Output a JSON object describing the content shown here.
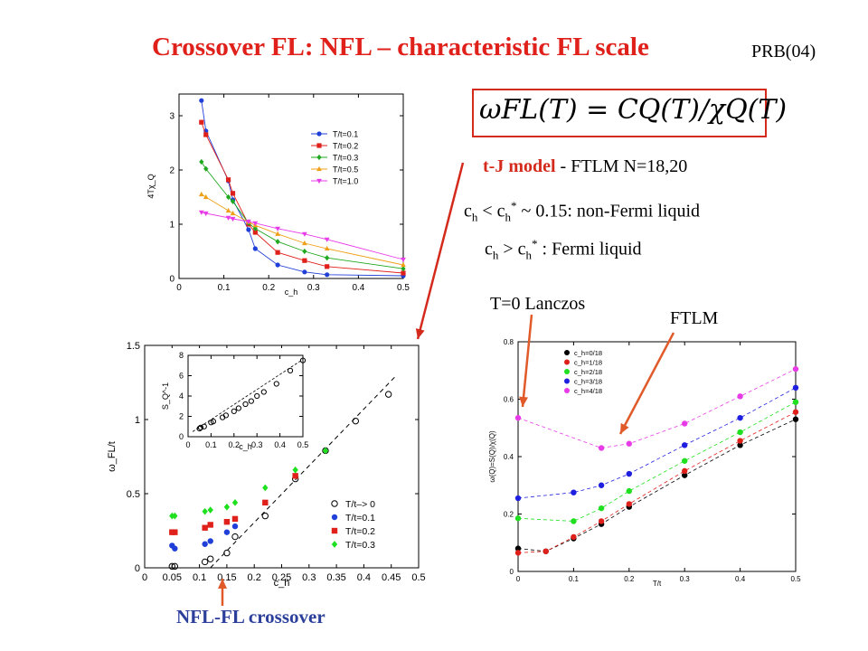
{
  "title": "Crossover FL: NFL –  characteristic FL scale",
  "reference": "PRB(04)",
  "formula": "ωFL(T) = CQ(T)/χQ(T)",
  "model": {
    "name": "t-J model",
    "rest": " - FTLM  N=18,20"
  },
  "condition_nfl": {
    "c": "c",
    "h1": "h",
    "lt": " < c",
    "h2": "h",
    "star": "*",
    "rest": " ~ 0.15:    non-Fermi liquid"
  },
  "condition_fl": {
    "c": "c",
    "h1": "h",
    "gt": " > c",
    "h2": "h",
    "star": "*",
    "rest": " :      Fermi liquid"
  },
  "labels": {
    "lanczos": "T=0 Lanczos",
    "ftlm": "FTLM",
    "crossover": "NFL-FL crossover"
  },
  "colors": {
    "title": "#e0201a",
    "arrow": "#e05a2a",
    "box": "#d42a1c",
    "crossover": "#2b3f9b"
  },
  "chart_data": [
    {
      "type": "line",
      "ylabel": "4Tχ_Q",
      "xlabel": "c_h",
      "xlim": [
        0,
        0.5
      ],
      "ylim": [
        0,
        3.4
      ],
      "xticks": [
        0,
        0.1,
        0.2,
        0.3,
        0.4,
        0.5
      ],
      "yticks": [
        0,
        1,
        2,
        3
      ],
      "legend_position": "top-right",
      "series": [
        {
          "name": "T/t=0.1",
          "color": "#1f3fd8",
          "marker": "circle",
          "x": [
            0.05,
            0.06,
            0.11,
            0.12,
            0.155,
            0.17,
            0.22,
            0.28,
            0.33,
            0.5
          ],
          "y": [
            3.28,
            2.72,
            1.8,
            1.45,
            0.9,
            0.55,
            0.25,
            0.12,
            0.07,
            0.05
          ]
        },
        {
          "name": "T/t=0.2",
          "color": "#e0201a",
          "marker": "square",
          "x": [
            0.05,
            0.06,
            0.11,
            0.12,
            0.155,
            0.17,
            0.22,
            0.28,
            0.33,
            0.5
          ],
          "y": [
            2.88,
            2.65,
            1.82,
            1.57,
            1.0,
            0.85,
            0.48,
            0.33,
            0.22,
            0.1
          ]
        },
        {
          "name": "T/t=0.3",
          "color": "#1fa81f",
          "marker": "diamond",
          "x": [
            0.05,
            0.06,
            0.11,
            0.12,
            0.155,
            0.17,
            0.22,
            0.28,
            0.33,
            0.5
          ],
          "y": [
            2.15,
            2.02,
            1.5,
            1.42,
            1.02,
            0.92,
            0.68,
            0.5,
            0.38,
            0.18
          ]
        },
        {
          "name": "T/t=0.5",
          "color": "#f0a018",
          "marker": "triangle-up",
          "x": [
            0.05,
            0.06,
            0.11,
            0.12,
            0.155,
            0.17,
            0.22,
            0.28,
            0.33,
            0.5
          ],
          "y": [
            1.55,
            1.5,
            1.25,
            1.2,
            1.04,
            0.98,
            0.82,
            0.65,
            0.55,
            0.25
          ]
        },
        {
          "name": "T/t=1.0",
          "color": "#e83be8",
          "marker": "triangle-down",
          "x": [
            0.05,
            0.06,
            0.11,
            0.12,
            0.155,
            0.17,
            0.22,
            0.28,
            0.33,
            0.5
          ],
          "y": [
            1.22,
            1.2,
            1.12,
            1.1,
            1.05,
            1.02,
            0.92,
            0.82,
            0.72,
            0.35
          ]
        }
      ]
    },
    {
      "type": "scatter",
      "ylabel": "ω_FL/t",
      "xlabel": "c_h",
      "xlim": [
        0,
        0.5
      ],
      "ylim": [
        0,
        1.5
      ],
      "xticks": [
        0,
        0.05,
        0.1,
        0.15,
        0.2,
        0.25,
        0.3,
        0.35,
        0.4,
        0.45,
        0.5
      ],
      "yticks": [
        0,
        0.5,
        1,
        1.5
      ],
      "legend_position": "bottom-right",
      "fit_line": {
        "x": [
          0.12,
          0.46
        ],
        "y": [
          0.0,
          1.3
        ],
        "style": "dashed"
      },
      "series": [
        {
          "name": "T/t–> 0",
          "color": "#000000",
          "marker": "open-circle",
          "x": [
            0.05,
            0.055,
            0.11,
            0.12,
            0.15,
            0.165,
            0.22,
            0.275,
            0.33,
            0.385,
            0.445
          ],
          "y": [
            0.01,
            0.01,
            0.04,
            0.06,
            0.1,
            0.21,
            0.35,
            0.6,
            0.79,
            0.99,
            1.17
          ]
        },
        {
          "name": "T/t=0.1",
          "color": "#1f3fd8",
          "marker": "circle",
          "x": [
            0.05,
            0.055,
            0.11,
            0.12,
            0.15,
            0.165
          ],
          "y": [
            0.15,
            0.13,
            0.16,
            0.18,
            0.24,
            0.28
          ]
        },
        {
          "name": "T/t=0.2",
          "color": "#e0201a",
          "marker": "square",
          "x": [
            0.05,
            0.055,
            0.11,
            0.12,
            0.15,
            0.165,
            0.22,
            0.275
          ],
          "y": [
            0.24,
            0.24,
            0.27,
            0.29,
            0.31,
            0.33,
            0.44,
            0.62
          ]
        },
        {
          "name": "T/t=0.3",
          "color": "#1fe01f",
          "marker": "diamond",
          "x": [
            0.05,
            0.055,
            0.11,
            0.12,
            0.15,
            0.165,
            0.22,
            0.275,
            0.33
          ],
          "y": [
            0.35,
            0.35,
            0.38,
            0.39,
            0.41,
            0.44,
            0.54,
            0.66,
            0.79
          ]
        }
      ],
      "inset": {
        "ylabel": "S_Q^-1",
        "xlabel": "c_h",
        "xlim": [
          0,
          0.5
        ],
        "ylim": [
          0,
          8
        ],
        "xticks": [
          0,
          0.1,
          0.2,
          0.3,
          0.4,
          0.5
        ],
        "yticks": [
          0,
          2,
          4,
          6,
          8
        ],
        "x": [
          0.05,
          0.055,
          0.07,
          0.1,
          0.11,
          0.15,
          0.165,
          0.2,
          0.22,
          0.25,
          0.275,
          0.3,
          0.33,
          0.385,
          0.445,
          0.5
        ],
        "y": [
          0.8,
          0.9,
          1.0,
          1.4,
          1.5,
          1.9,
          2.1,
          2.5,
          2.8,
          3.2,
          3.5,
          4.0,
          4.4,
          5.2,
          6.5,
          7.5
        ],
        "fit_line": {
          "x": [
            0.02,
            0.5
          ],
          "y": [
            0.5,
            7.6
          ]
        }
      }
    },
    {
      "type": "scatter",
      "ylabel": "ω(Q)=S(Q)/χ(Q)",
      "xlabel": "T/t",
      "xlim": [
        0,
        0.5
      ],
      "ylim": [
        0,
        0.8
      ],
      "xticks": [
        0,
        0.1,
        0.2,
        0.3,
        0.4,
        0.5
      ],
      "yticks": [
        0,
        0.2,
        0.4,
        0.6,
        0.8
      ],
      "legend_position": "top-left",
      "series": [
        {
          "name": "c_h=0/18",
          "color": "#000000",
          "x": [
            0,
            0.05,
            0.1,
            0.15,
            0.2,
            0.3,
            0.4,
            0.5
          ],
          "y": [
            0.08,
            0.07,
            0.115,
            0.165,
            0.225,
            0.335,
            0.44,
            0.53
          ]
        },
        {
          "name": "c_h=1/18",
          "color": "#e0201a",
          "x": [
            0,
            0.05,
            0.1,
            0.15,
            0.2,
            0.3,
            0.4,
            0.5
          ],
          "y": [
            0.065,
            0.07,
            0.12,
            0.175,
            0.235,
            0.35,
            0.455,
            0.555
          ]
        },
        {
          "name": "c_h=2/18",
          "color": "#1fe01f",
          "x": [
            0,
            0.1,
            0.15,
            0.2,
            0.3,
            0.4,
            0.5
          ],
          "y": [
            0.185,
            0.175,
            0.22,
            0.28,
            0.385,
            0.485,
            0.59
          ]
        },
        {
          "name": "c_h=3/18",
          "color": "#1f1fe0",
          "x": [
            0,
            0.1,
            0.15,
            0.2,
            0.3,
            0.4,
            0.5
          ],
          "y": [
            0.255,
            0.275,
            0.3,
            0.34,
            0.44,
            0.535,
            0.64
          ]
        },
        {
          "name": "c_h=4/18",
          "color": "#e83be8",
          "x": [
            0,
            0.15,
            0.2,
            0.3,
            0.4,
            0.5
          ],
          "y": [
            0.535,
            0.43,
            0.445,
            0.515,
            0.61,
            0.705
          ]
        }
      ]
    }
  ]
}
